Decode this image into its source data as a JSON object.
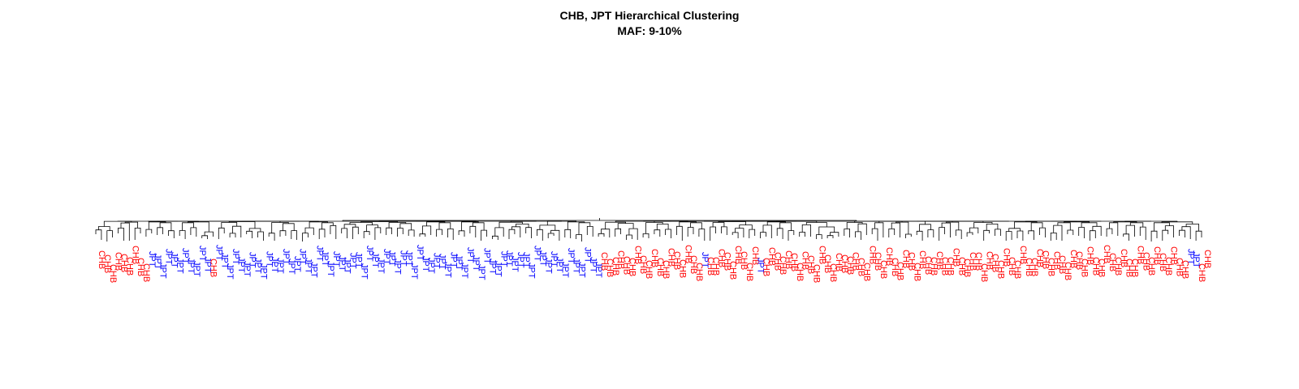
{
  "chart_data": {
    "type": "dendrogram",
    "title": "CHB, JPT Hierarchical Clustering",
    "subtitle": "MAF: 9-10%",
    "colors": {
      "CHB": "#ff0000",
      "JPT": "#0000ff",
      "branch": "#000000"
    },
    "leaves": [
      "CHB",
      "CHB",
      "CHB",
      "CHB",
      "CHB",
      "CHB",
      "CHB",
      "CHB",
      "CHB",
      "JPT",
      "JPT",
      "JPT",
      "JPT",
      "JPT",
      "JPT",
      "JPT",
      "JPT",
      "JPT",
      "JPT",
      "JPT",
      "CHB",
      "JPT",
      "JPT",
      "JPT",
      "JPT",
      "JPT",
      "JPT",
      "JPT",
      "JPT",
      "JPT",
      "JPT",
      "JPT",
      "JPT",
      "JPT",
      "JPT",
      "JPT",
      "JPT",
      "JPT",
      "JPT",
      "JPT",
      "JPT",
      "JPT",
      "JPT",
      "JPT",
      "JPT",
      "JPT",
      "JPT",
      "JPT",
      "JPT",
      "JPT",
      "JPT",
      "JPT",
      "JPT",
      "JPT",
      "JPT",
      "JPT",
      "JPT",
      "JPT",
      "JPT",
      "JPT",
      "JPT",
      "JPT",
      "JPT",
      "JPT",
      "JPT",
      "JPT",
      "JPT",
      "JPT",
      "JPT",
      "JPT",
      "JPT",
      "JPT",
      "JPT",
      "JPT",
      "JPT",
      "JPT",
      "JPT",
      "JPT",
      "JPT",
      "JPT",
      "JPT",
      "JPT",
      "JPT",
      "JPT",
      "JPT",
      "JPT",
      "JPT",
      "JPT",
      "JPT",
      "JPT",
      "CHB",
      "CHB",
      "CHB",
      "CHB",
      "CHB",
      "CHB",
      "CHB",
      "CHB",
      "CHB",
      "CHB",
      "CHB",
      "CHB",
      "CHB",
      "CHB",
      "CHB",
      "CHB",
      "CHB",
      "CHB",
      "JPT",
      "CHB",
      "CHB",
      "CHB",
      "CHB",
      "CHB",
      "CHB",
      "CHB",
      "CHB",
      "CHB",
      "JPT",
      "CHB",
      "CHB",
      "CHB",
      "CHB",
      "CHB",
      "CHB",
      "CHB",
      "CHB",
      "CHB",
      "CHB",
      "CHB",
      "CHB",
      "CHB",
      "CHB",
      "CHB",
      "CHB",
      "CHB",
      "CHB",
      "CHB",
      "CHB",
      "CHB",
      "CHB",
      "CHB",
      "CHB",
      "CHB",
      "CHB",
      "CHB",
      "CHB",
      "CHB",
      "CHB",
      "CHB",
      "CHB",
      "CHB",
      "CHB",
      "CHB",
      "CHB",
      "CHB",
      "CHB",
      "CHB",
      "CHB",
      "CHB",
      "CHB",
      "CHB",
      "CHB",
      "CHB",
      "CHB",
      "CHB",
      "CHB",
      "CHB",
      "CHB",
      "CHB",
      "CHB",
      "CHB",
      "CHB",
      "CHB",
      "CHB",
      "CHB",
      "CHB",
      "CHB",
      "CHB",
      "CHB",
      "CHB",
      "CHB",
      "CHB",
      "CHB",
      "CHB",
      "CHB",
      "CHB",
      "CHB",
      "CHB",
      "CHB",
      "CHB",
      "CHB",
      "CHB",
      "CHB",
      "CHB",
      "JPT",
      "JPT",
      "CHB",
      "CHB"
    ]
  }
}
